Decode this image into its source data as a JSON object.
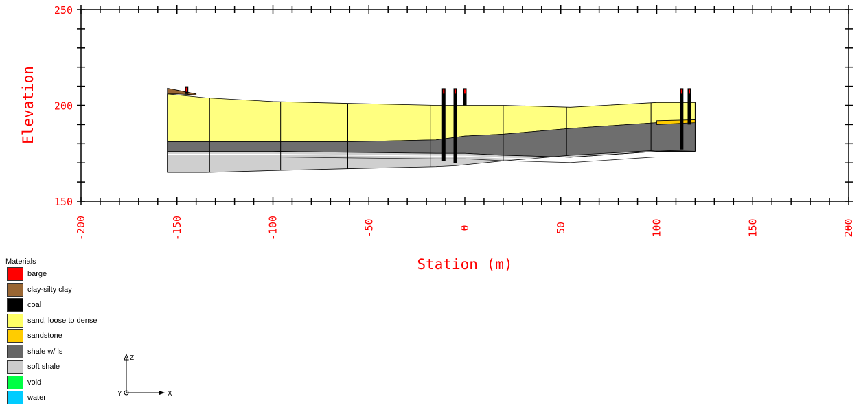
{
  "chart_data": {
    "type": "cross-section",
    "xlabel": "Station (m)",
    "ylabel": "Elevation",
    "xlim": [
      -200,
      200
    ],
    "ylim": [
      150,
      250
    ],
    "x_ticks": [
      -200,
      -150,
      -100,
      -50,
      0,
      50,
      100,
      150,
      200
    ],
    "y_ticks": [
      150,
      200,
      250
    ],
    "layers": [
      {
        "material": "sand, loose to dense",
        "color": "#ffff80",
        "top": [
          [
            -155,
            206
          ],
          [
            -135,
            204
          ],
          [
            -100,
            202
          ],
          [
            -60,
            201
          ],
          [
            -15,
            200
          ],
          [
            0,
            200
          ],
          [
            20,
            200
          ],
          [
            55,
            199
          ],
          [
            100,
            201.5
          ],
          [
            120,
            201.5
          ]
        ],
        "bottom": [
          [
            -155,
            181
          ],
          [
            -135,
            181
          ],
          [
            -100,
            181
          ],
          [
            -60,
            181
          ],
          [
            -15,
            182
          ],
          [
            0,
            184
          ],
          [
            20,
            185
          ],
          [
            55,
            188
          ],
          [
            100,
            191
          ],
          [
            120,
            192
          ]
        ]
      },
      {
        "material": "shale w/ ls",
        "color": "#6e6e6e",
        "top": [
          [
            -155,
            181
          ],
          [
            -135,
            181
          ],
          [
            -100,
            181
          ],
          [
            -60,
            181
          ],
          [
            -15,
            182
          ],
          [
            0,
            184
          ],
          [
            20,
            185
          ],
          [
            55,
            188
          ],
          [
            100,
            191
          ],
          [
            120,
            192
          ]
        ],
        "bottom": [
          [
            -155,
            176
          ],
          [
            -100,
            176
          ],
          [
            -60,
            175.5
          ],
          [
            -15,
            175
          ],
          [
            0,
            175
          ],
          [
            20,
            174
          ],
          [
            55,
            173
          ],
          [
            100,
            176
          ],
          [
            120,
            176
          ]
        ]
      },
      {
        "material": "soft shale",
        "color": "#cfcfcf",
        "top": [
          [
            -155,
            176
          ],
          [
            -100,
            176
          ],
          [
            -60,
            175.5
          ],
          [
            -15,
            175
          ],
          [
            0,
            175
          ],
          [
            20,
            174
          ],
          [
            55,
            173
          ],
          [
            100,
            176
          ],
          [
            120,
            176
          ]
        ],
        "bottom": [
          [
            -155,
            165
          ],
          [
            -135,
            165
          ],
          [
            -100,
            166
          ],
          [
            -60,
            167
          ],
          [
            -15,
            168
          ],
          [
            -5,
            168.5
          ],
          [
            20,
            171
          ],
          [
            55,
            174
          ],
          [
            100,
            176.5
          ],
          [
            120,
            176
          ]
        ]
      },
      {
        "material": "clay-silty clay",
        "color": "#996633",
        "top": [
          [
            -155,
            209
          ],
          [
            -150,
            208
          ],
          [
            -140,
            206
          ]
        ],
        "bottom": [
          [
            -155,
            206
          ],
          [
            -150,
            206
          ],
          [
            -140,
            205.5
          ]
        ]
      },
      {
        "material": "sandstone",
        "color": "#ffcc00",
        "top": [
          [
            100,
            192
          ],
          [
            120,
            192.5
          ]
        ],
        "bottom": [
          [
            100,
            190
          ],
          [
            120,
            191
          ]
        ]
      }
    ],
    "boreholes": [
      {
        "x": -11,
        "top": 209,
        "bottom": 171
      },
      {
        "x": -5,
        "top": 209,
        "bottom": 170
      },
      {
        "x": 0,
        "top": 209,
        "bottom": 200
      },
      {
        "x": 113,
        "top": 209,
        "bottom": 177
      },
      {
        "x": 117,
        "top": 209,
        "bottom": 190
      },
      {
        "x": -145,
        "top": 210,
        "bottom": 206
      }
    ],
    "section_lines": [
      -155,
      -133,
      -96,
      -61,
      -18,
      20,
      53,
      97,
      120
    ]
  },
  "legend": {
    "title": "Materials",
    "items": [
      {
        "label": "barge",
        "color": "#ff0000"
      },
      {
        "label": "clay-silty clay",
        "color": "#996633"
      },
      {
        "label": "coal",
        "color": "#000000"
      },
      {
        "label": "sand, loose to dense",
        "color": "#ffff66"
      },
      {
        "label": "sandstone",
        "color": "#ffcc00"
      },
      {
        "label": "shale w/ ls",
        "color": "#666666"
      },
      {
        "label": "soft shale",
        "color": "#cccccc"
      },
      {
        "label": "void",
        "color": "#00ff44"
      },
      {
        "label": "water",
        "color": "#00ccff"
      }
    ]
  },
  "axes_triad": {
    "z": "Z",
    "y": "Y",
    "x": "X"
  },
  "colors": {
    "axis_text": "#ff0000",
    "frame": "#000000"
  }
}
